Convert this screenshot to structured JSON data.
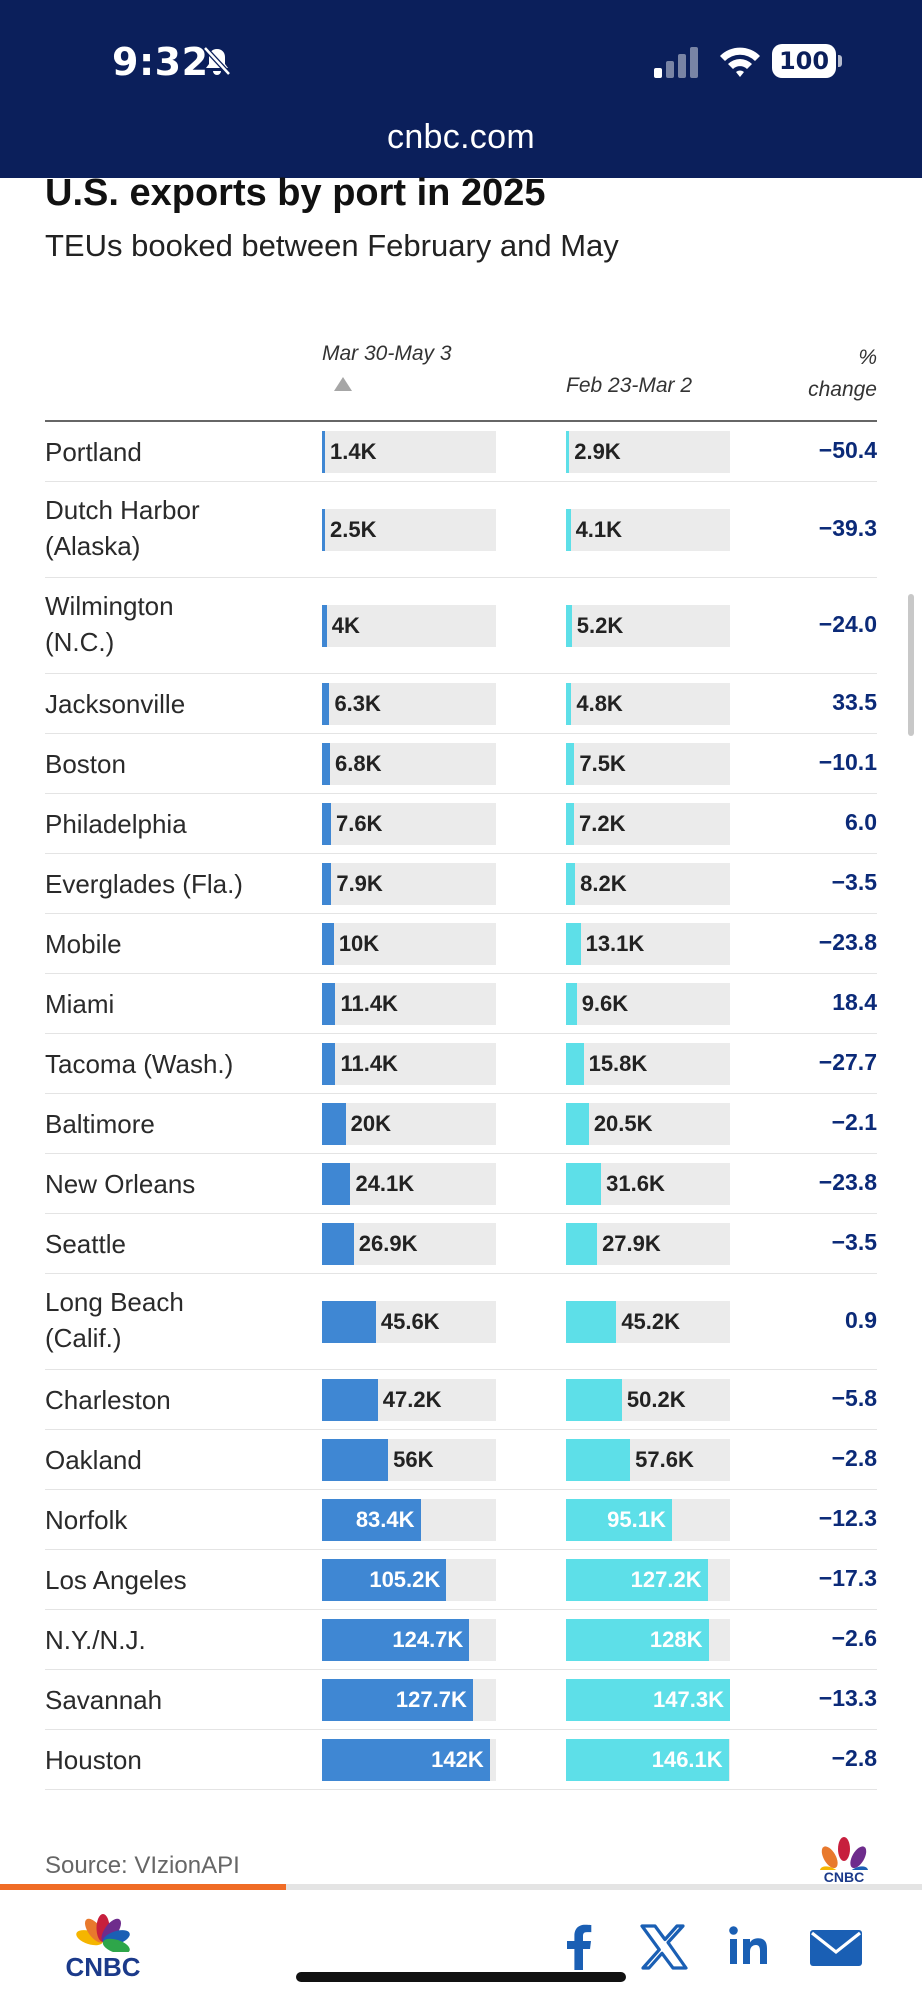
{
  "status_bar": {
    "time": "9:32",
    "battery": "100"
  },
  "browser": {
    "url": "cnbc.com"
  },
  "chart": {
    "title": "U.S. exports by port in 2025",
    "subtitle": "TEUs booked between February and May",
    "col1_label": "Mar 30-May 3",
    "col2_label": "Feb 23-Mar 2",
    "col3_label_line1": "%",
    "col3_label_line2": "change",
    "max_value": 147.3
  },
  "chart_data": {
    "type": "bar",
    "title": "U.S. exports by port in 2025",
    "subtitle": "TEUs booked between February and May",
    "categories": [
      "Portland",
      "Dutch Harbor (Alaska)",
      "Wilmington (N.C.)",
      "Jacksonville",
      "Boston",
      "Philadelphia",
      "Everglades (Fla.)",
      "Mobile",
      "Miami",
      "Tacoma (Wash.)",
      "Baltimore",
      "New Orleans",
      "Seattle",
      "Long Beach (Calif.)",
      "Charleston",
      "Oakland",
      "Norfolk",
      "Los Angeles",
      "N.Y./N.J.",
      "Savannah",
      "Houston"
    ],
    "series": [
      {
        "name": "Mar 30-May 3",
        "values": [
          1.4,
          2.5,
          4,
          6.3,
          6.8,
          7.6,
          7.9,
          10,
          11.4,
          11.4,
          20,
          24.1,
          26.9,
          45.6,
          47.2,
          56,
          83.4,
          105.2,
          124.7,
          127.7,
          142
        ]
      },
      {
        "name": "Feb 23-Mar 2",
        "values": [
          2.9,
          4.1,
          5.2,
          4.8,
          7.5,
          7.2,
          8.2,
          13.1,
          9.6,
          15.8,
          20.5,
          31.6,
          27.9,
          45.2,
          50.2,
          57.6,
          95.1,
          127.2,
          128,
          147.3,
          146.1
        ]
      }
    ],
    "pct_change": [
      -50.4,
      -39.3,
      -24.0,
      33.5,
      -10.1,
      6.0,
      -3.5,
      -23.8,
      18.4,
      -27.7,
      -2.1,
      -23.8,
      -3.5,
      0.9,
      -5.8,
      -2.8,
      -12.3,
      -17.3,
      -2.6,
      -13.3,
      -2.8
    ],
    "unit": "K"
  },
  "rows": [
    {
      "port": "Portland",
      "v1": 1.4,
      "l1": "1.4K",
      "v2": 2.9,
      "l2": "2.9K",
      "pct": "−50.4"
    },
    {
      "port": "Dutch Harbor\n(Alaska)",
      "v1": 2.5,
      "l1": "2.5K",
      "v2": 4.1,
      "l2": "4.1K",
      "pct": "−39.3"
    },
    {
      "port": "Wilmington\n(N.C.)",
      "v1": 4,
      "l1": "4K",
      "v2": 5.2,
      "l2": "5.2K",
      "pct": "−24.0"
    },
    {
      "port": "Jacksonville",
      "v1": 6.3,
      "l1": "6.3K",
      "v2": 4.8,
      "l2": "4.8K",
      "pct": "33.5"
    },
    {
      "port": "Boston",
      "v1": 6.8,
      "l1": "6.8K",
      "v2": 7.5,
      "l2": "7.5K",
      "pct": "−10.1"
    },
    {
      "port": "Philadelphia",
      "v1": 7.6,
      "l1": "7.6K",
      "v2": 7.2,
      "l2": "7.2K",
      "pct": "6.0"
    },
    {
      "port": "Everglades (Fla.)",
      "v1": 7.9,
      "l1": "7.9K",
      "v2": 8.2,
      "l2": "8.2K",
      "pct": "−3.5"
    },
    {
      "port": "Mobile",
      "v1": 10,
      "l1": "10K",
      "v2": 13.1,
      "l2": "13.1K",
      "pct": "−23.8"
    },
    {
      "port": "Miami",
      "v1": 11.4,
      "l1": "11.4K",
      "v2": 9.6,
      "l2": "9.6K",
      "pct": "18.4"
    },
    {
      "port": "Tacoma (Wash.)",
      "v1": 11.4,
      "l1": "11.4K",
      "v2": 15.8,
      "l2": "15.8K",
      "pct": "−27.7"
    },
    {
      "port": "Baltimore",
      "v1": 20,
      "l1": "20K",
      "v2": 20.5,
      "l2": "20.5K",
      "pct": "−2.1"
    },
    {
      "port": "New Orleans",
      "v1": 24.1,
      "l1": "24.1K",
      "v2": 31.6,
      "l2": "31.6K",
      "pct": "−23.8"
    },
    {
      "port": "Seattle",
      "v1": 26.9,
      "l1": "26.9K",
      "v2": 27.9,
      "l2": "27.9K",
      "pct": "−3.5"
    },
    {
      "port": "Long Beach\n(Calif.)",
      "v1": 45.6,
      "l1": "45.6K",
      "v2": 45.2,
      "l2": "45.2K",
      "pct": "0.9"
    },
    {
      "port": "Charleston",
      "v1": 47.2,
      "l1": "47.2K",
      "v2": 50.2,
      "l2": "50.2K",
      "pct": "−5.8"
    },
    {
      "port": "Oakland",
      "v1": 56,
      "l1": "56K",
      "v2": 57.6,
      "l2": "57.6K",
      "pct": "−2.8"
    },
    {
      "port": "Norfolk",
      "v1": 83.4,
      "l1": "83.4K",
      "v2": 95.1,
      "l2": "95.1K",
      "pct": "−12.3"
    },
    {
      "port": "Los Angeles",
      "v1": 105.2,
      "l1": "105.2K",
      "v2": 127.2,
      "l2": "127.2K",
      "pct": "−17.3"
    },
    {
      "port": "N.Y./N.J.",
      "v1": 124.7,
      "l1": "124.7K",
      "v2": 128,
      "l2": "128K",
      "pct": "−2.6"
    },
    {
      "port": "Savannah",
      "v1": 127.7,
      "l1": "127.7K",
      "v2": 147.3,
      "l2": "147.3K",
      "pct": "−13.3"
    },
    {
      "port": "Houston",
      "v1": 142,
      "l1": "142K",
      "v2": 146.1,
      "l2": "146.1K",
      "pct": "−2.8"
    }
  ],
  "footer": {
    "source": "Source: VIzionAPI",
    "scroll_progress": 0.31,
    "logo_text": "CNBC"
  },
  "share_icons": [
    "facebook-icon",
    "x-icon",
    "linkedin-icon",
    "email-icon"
  ],
  "colors": {
    "header_bg": "#0b1f5b",
    "bar1": "#3f87d3",
    "bar2": "#5ddfe8",
    "bar_track": "#ebebeb",
    "pct_text": "#0b2a78",
    "share_blue": "#1a5fb4",
    "progress": "#f06c26"
  }
}
